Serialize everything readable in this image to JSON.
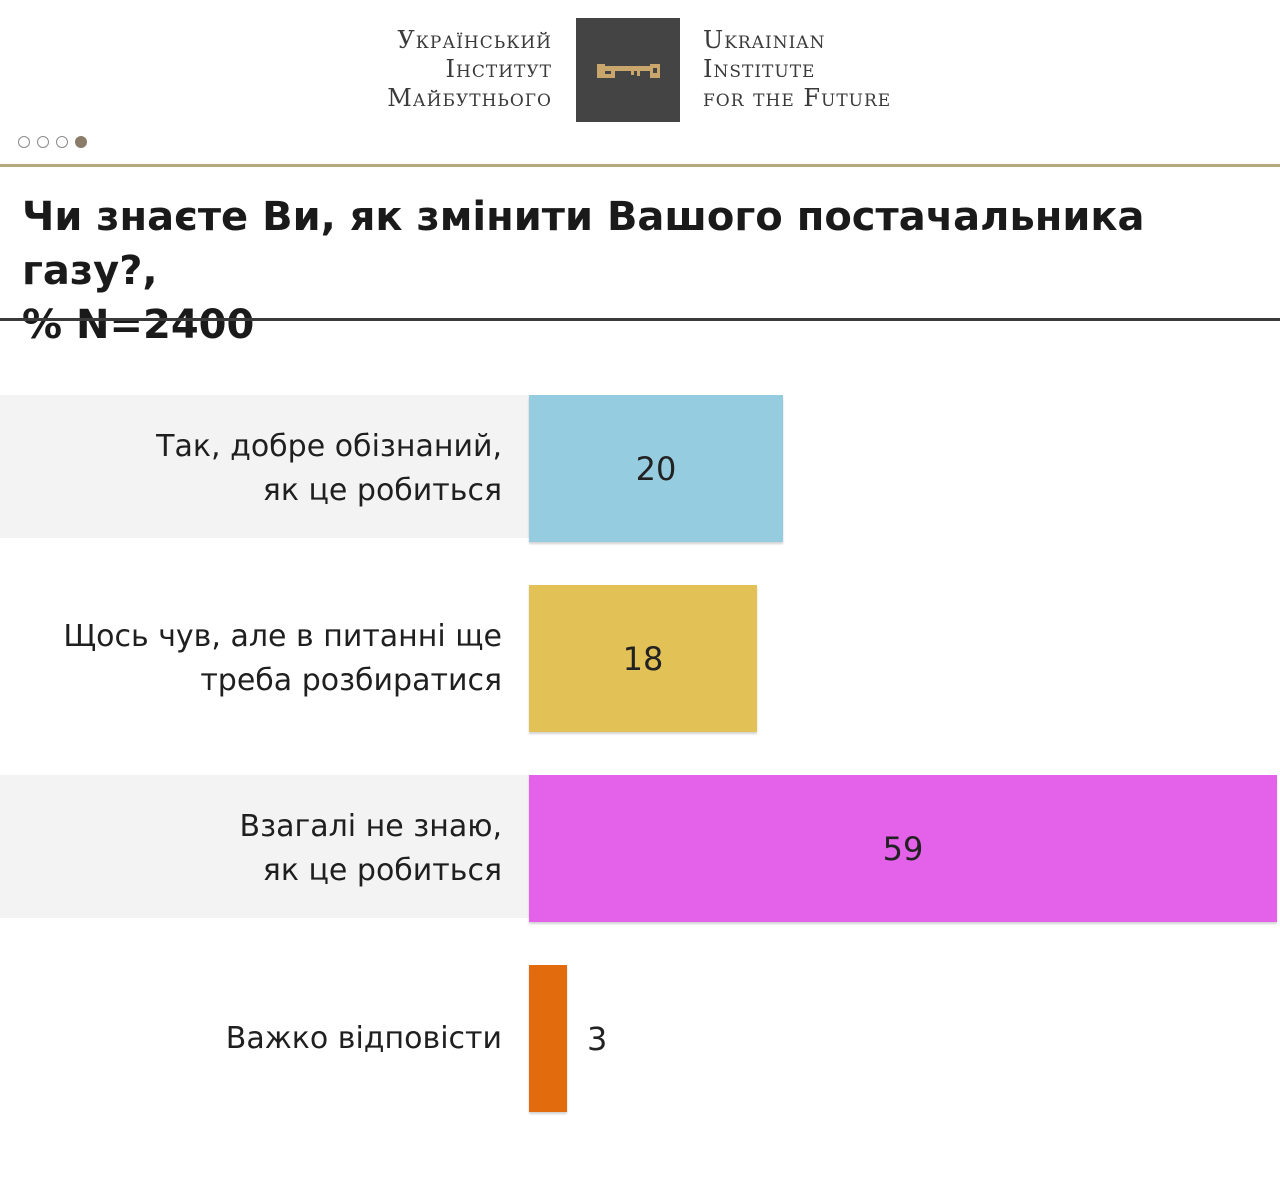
{
  "logo": {
    "ua_lines": [
      "Український",
      "Інститут",
      "Майбутнього"
    ],
    "en_lines": [
      "Ukrainian",
      "Institute",
      "for the Future"
    ]
  },
  "pager": {
    "count": 4,
    "active_index": 3
  },
  "colors": {
    "accent_gold": "#b5a77e",
    "key_icon": "#c9a66b",
    "logo_box": "#444444"
  },
  "chart_data": {
    "type": "bar",
    "orientation": "horizontal",
    "title": "Чи знаєте Ви, як змінити Вашого постачальника газу?,\n% N=2400",
    "categories": [
      "Так, добре обізнаний,\nяк це робиться",
      "Щось чув, але в питанні ще\nтреба розбиратися",
      "Взагалі не знаю,\nяк це робиться",
      "Важко відповісти"
    ],
    "values": [
      20,
      18,
      59,
      3
    ],
    "colors": [
      "#96cce0",
      "#e2c257",
      "#e461ea",
      "#e26b0e"
    ],
    "xlim": [
      0,
      59
    ],
    "grid": false,
    "legend": "none"
  }
}
